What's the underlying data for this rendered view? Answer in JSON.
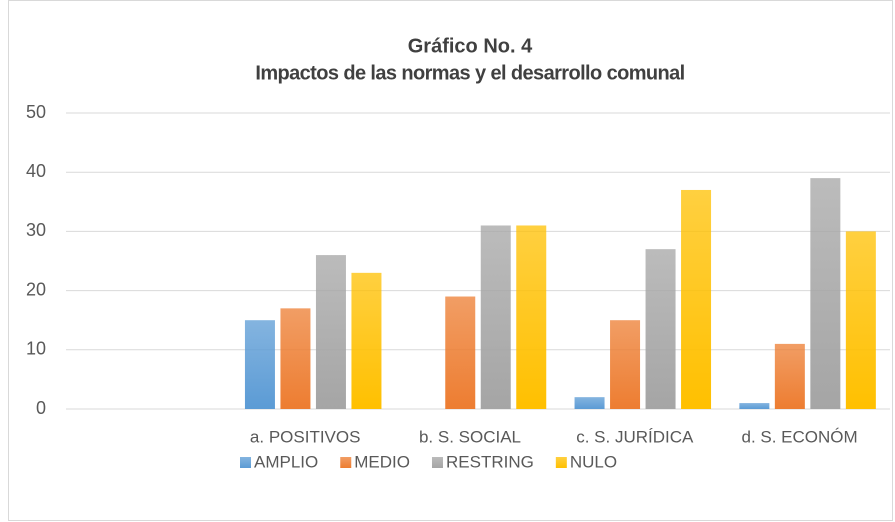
{
  "chart_data": {
    "type": "bar",
    "title": "Gráfico No.  4",
    "subtitle": "Impactos de las normas y el desarrollo comunal",
    "categories": [
      null,
      "a.  POSITIVOS",
      "b. S. SOCIAL",
      "c. S. JURÍDICA",
      "d. S. ECONÓM"
    ],
    "series": [
      {
        "name": "AMPLIO",
        "color": "#5b9bd5",
        "values": [
          null,
          15,
          0,
          2,
          1
        ]
      },
      {
        "name": "MEDIO",
        "color": "#ed7d31",
        "values": [
          null,
          17,
          19,
          15,
          11
        ]
      },
      {
        "name": "RESTRING",
        "color": "#a5a5a5",
        "values": [
          null,
          26,
          31,
          27,
          39
        ]
      },
      {
        "name": "NULO",
        "color": "#ffc000",
        "values": [
          null,
          23,
          31,
          37,
          30
        ]
      }
    ],
    "ylim": [
      0,
      50
    ],
    "yticks": [
      0,
      10,
      20,
      30,
      40,
      50
    ],
    "grid": true,
    "legend": "bottom"
  }
}
